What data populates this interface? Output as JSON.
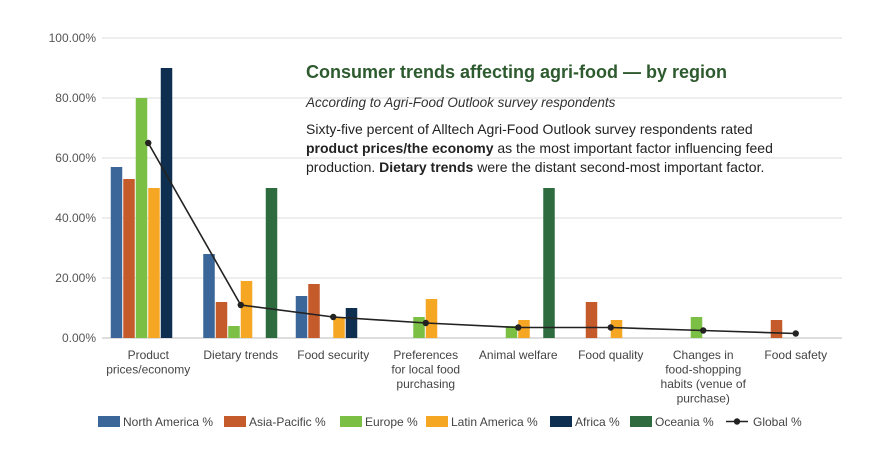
{
  "annotation": {
    "title": "Consumer trends affecting agri-food — by region",
    "subtitle": "According to Agri-Food Outlook survey respondents",
    "lines": [
      [
        {
          "text": "Sixty-five percent of Alltech Agri-Food Outlook survey respondents rated",
          "bold": false
        }
      ],
      [
        {
          "text": "product prices/the economy",
          "bold": true
        },
        {
          "text": " as the most important factor influencing feed",
          "bold": false
        }
      ],
      [
        {
          "text": "production. ",
          "bold": false
        },
        {
          "text": "Dietary trends",
          "bold": true
        },
        {
          "text": " were the distant second-most important factor.",
          "bold": false
        }
      ]
    ]
  },
  "chart_data": {
    "type": "bar",
    "title": "Consumer trends affecting agri-food — by region",
    "ylim": [
      0,
      100
    ],
    "yticks": [
      0,
      20,
      40,
      60,
      80,
      100
    ],
    "ytick_labels": [
      "0.00%",
      "20.00%",
      "40.00%",
      "60.00%",
      "80.00%",
      "100.00%"
    ],
    "grid": true,
    "categories": [
      [
        "Product",
        "prices/economy"
      ],
      [
        "Dietary trends"
      ],
      [
        "Food security"
      ],
      [
        "Preferences",
        "for local food",
        "purchasing"
      ],
      [
        "Animal welfare"
      ],
      [
        "Food quality"
      ],
      [
        "Changes in",
        "food-shopping",
        "habits (venue of",
        "purchase)"
      ],
      [
        "Food safety"
      ]
    ],
    "series": [
      {
        "name": "North America %",
        "color": "#3a6699",
        "values": [
          57,
          28,
          14,
          0,
          0,
          0,
          0,
          0
        ]
      },
      {
        "name": "Asia-Pacific %",
        "color": "#c55a2b",
        "values": [
          53,
          12,
          18,
          0,
          0,
          12,
          0,
          6
        ]
      },
      {
        "name": "Europe %",
        "color": "#7bbf45",
        "values": [
          80,
          4,
          0,
          7,
          4,
          0,
          7,
          0
        ]
      },
      {
        "name": "Latin America %",
        "color": "#f5a623",
        "values": [
          50,
          19,
          7,
          13,
          6,
          6,
          0,
          0
        ]
      },
      {
        "name": "Africa %",
        "color": "#0f2f50",
        "values": [
          90,
          0,
          10,
          0,
          0,
          0,
          0,
          0
        ]
      },
      {
        "name": "Oceania %",
        "color": "#2e6b3f",
        "values": [
          0,
          50,
          0,
          0,
          50,
          0,
          0,
          0
        ]
      }
    ],
    "line_series": {
      "name": "Global %",
      "color": "#222222",
      "values": [
        65,
        11,
        7,
        5,
        3.5,
        3.5,
        2.5,
        1.5
      ]
    },
    "legend_position": "bottom"
  }
}
